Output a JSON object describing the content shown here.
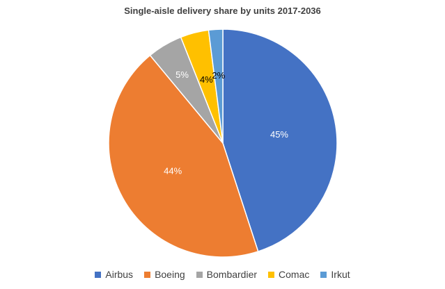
{
  "chart_data": {
    "type": "pie",
    "title": "Single-aisle delivery share by units 2017-2036",
    "categories": [
      "Airbus",
      "Boeing",
      "Bombardier",
      "Comac",
      "Irkut"
    ],
    "values": [
      45,
      44,
      5,
      4,
      2
    ],
    "data_labels": [
      "45%",
      "44%",
      "5%",
      "4%",
      "2%"
    ],
    "colors": [
      "#4472C4",
      "#ED7D31",
      "#A5A5A5",
      "#FFC000",
      "#5B9BD5"
    ],
    "label_colors": [
      "#ffffff",
      "#ffffff",
      "#ffffff",
      "#000000",
      "#000000"
    ],
    "start_angle_deg": 0,
    "direction": "clockwise",
    "legend_position": "bottom"
  }
}
